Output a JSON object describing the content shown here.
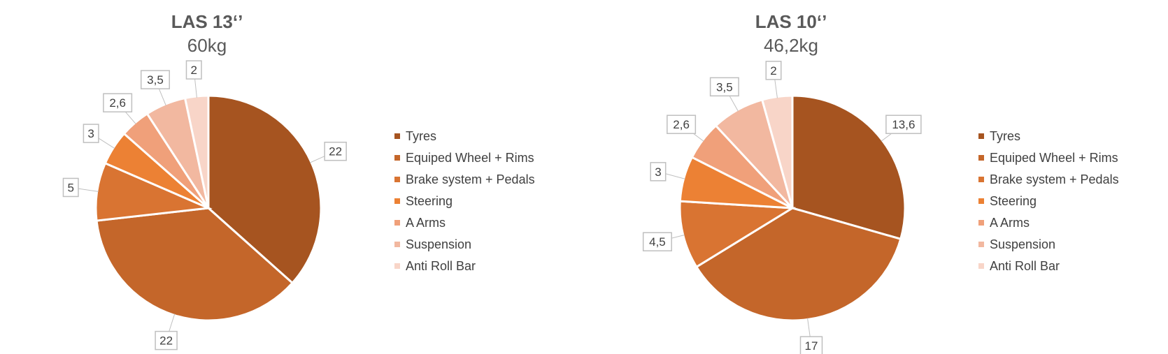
{
  "chart_data": [
    {
      "type": "pie",
      "title": "LAS 13‘’",
      "subtitle": "60kg",
      "categories": [
        "Tyres",
        "Equiped Wheel + Rims",
        "Brake system + Pedals",
        "Steering",
        "A Arms",
        "Suspension",
        "Anti Roll Bar"
      ],
      "values": [
        22,
        22,
        5,
        3,
        2.6,
        3.5,
        2
      ],
      "data_labels": [
        "22",
        "22",
        "5",
        "3",
        "2,6",
        "3,5",
        "2"
      ],
      "legend_position": "right"
    },
    {
      "type": "pie",
      "title": "LAS 10‘’",
      "subtitle": "46,2kg",
      "categories": [
        "Tyres",
        "Equiped Wheel + Rims",
        "Brake system + Pedals",
        "Steering",
        "A Arms",
        "Suspension",
        "Anti Roll Bar"
      ],
      "values": [
        13.6,
        17,
        4.5,
        3,
        2.6,
        3.5,
        2
      ],
      "data_labels": [
        "13,6",
        "17",
        "4,5",
        "3",
        "2,6",
        "3,5",
        "2"
      ],
      "legend_position": "right"
    }
  ],
  "colors": [
    "#A65420",
    "#C4662A",
    "#D97432",
    "#EC8134",
    "#F0A07A",
    "#F2B8A0",
    "#F8D5C8"
  ]
}
